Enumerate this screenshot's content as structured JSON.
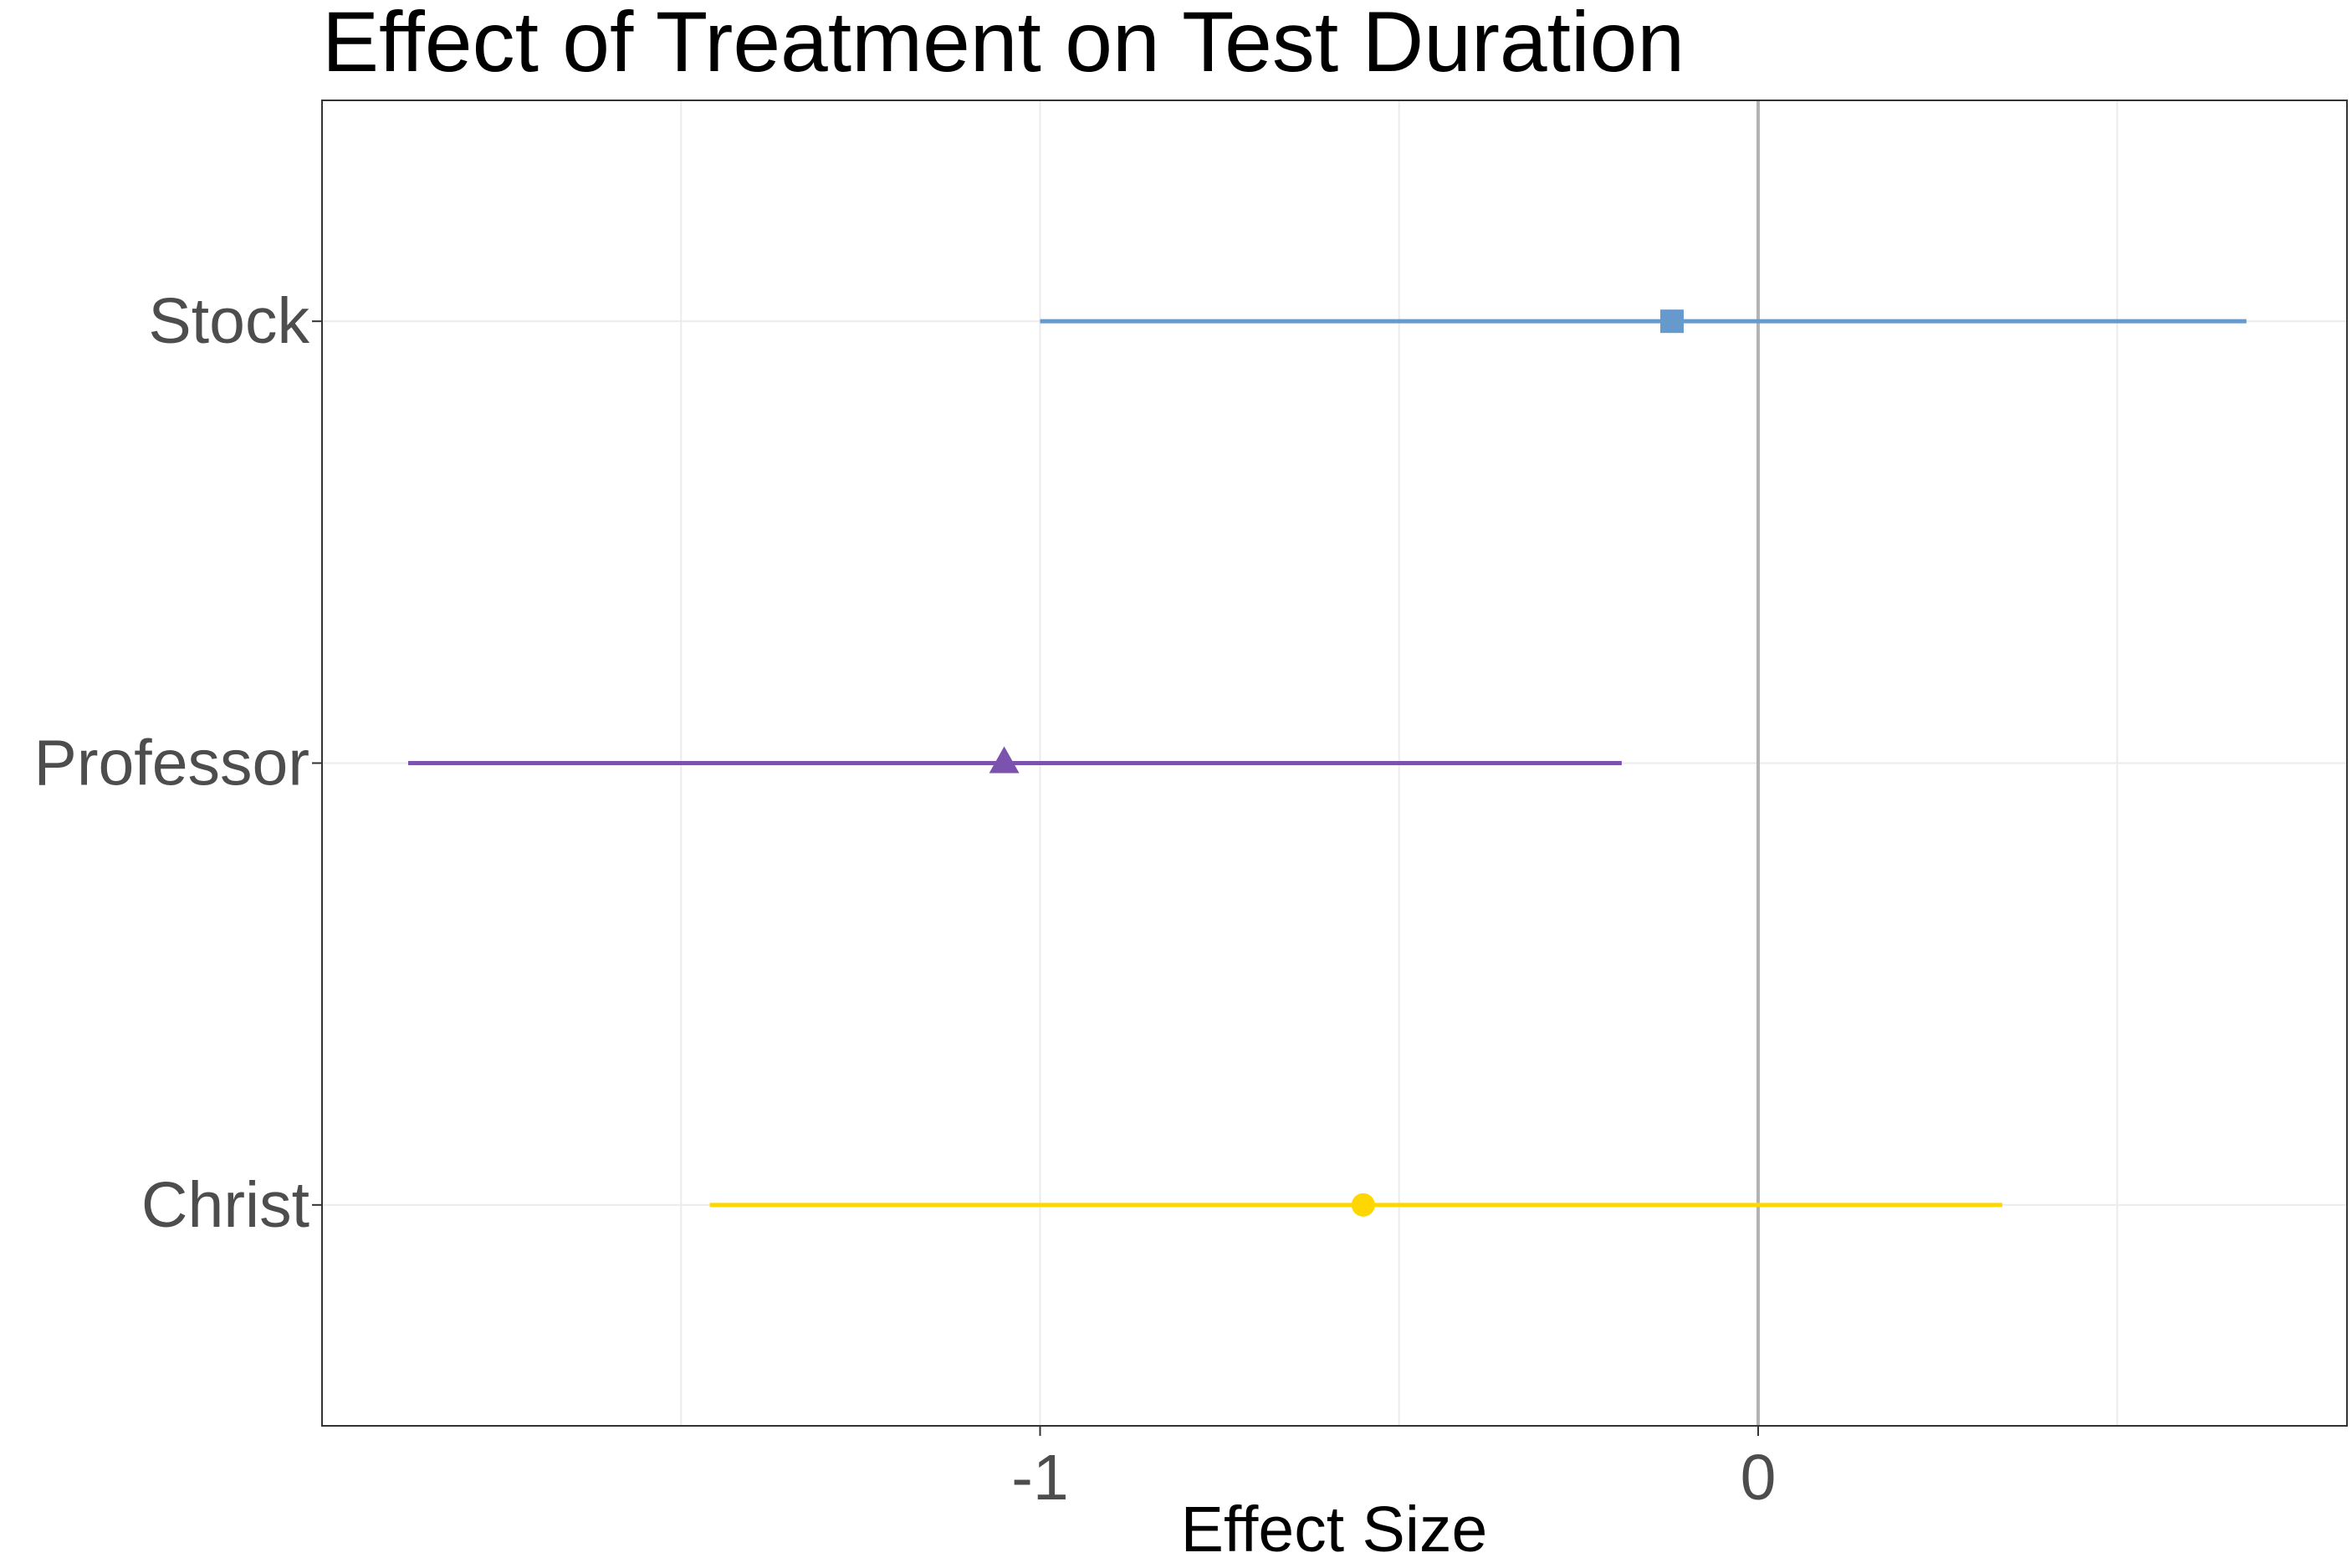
{
  "chart_data": {
    "type": "scatter",
    "subtype": "forest-plot",
    "title": "Effect of Treatment on Test Duration",
    "xlabel": "Effect Size",
    "ylabel": "",
    "xlim": [
      -2.0,
      0.82
    ],
    "x_ticks": [
      -1,
      0
    ],
    "x_tick_labels": [
      "-1",
      "0"
    ],
    "x_minor_gridlines": [
      -1.5,
      -0.5,
      0.5
    ],
    "reference_line_x": 0,
    "grid": true,
    "legend": "none",
    "categories": [
      "Stock",
      "Professor",
      "Christ"
    ],
    "series": [
      {
        "category": "Stock",
        "estimate": -0.12,
        "ci_low": -1.0,
        "ci_high": 0.68,
        "marker": "square",
        "color": "#6699cc"
      },
      {
        "category": "Professor",
        "estimate": -1.05,
        "ci_low": -1.88,
        "ci_high": -0.19,
        "marker": "triangle",
        "color": "#7b52ae"
      },
      {
        "category": "Christ",
        "estimate": -0.55,
        "ci_low": -1.46,
        "ci_high": 0.34,
        "marker": "circle",
        "color": "#ffd700"
      }
    ],
    "colors": {
      "panel_border": "#333333",
      "grid": "#ebebeb",
      "reference_line": "#b3b3b3",
      "tick_text": "#4d4d4d",
      "title_text": "#000000"
    }
  }
}
